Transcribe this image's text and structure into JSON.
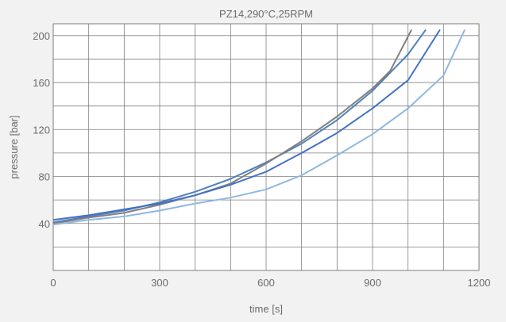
{
  "chart_data": {
    "type": "line",
    "title": "PZ14,290°C,25RPM",
    "xlabel": "time [s]",
    "ylabel": "pressure [bar]",
    "xlim": [
      0,
      1200
    ],
    "ylim": [
      0,
      210
    ],
    "grid": true,
    "x_ticks": [
      0,
      300,
      600,
      900,
      1200
    ],
    "y_ticks": [
      40,
      80,
      120,
      160,
      200
    ],
    "x_grid_step": 100,
    "y_grid_step": 20,
    "colors": {
      "background": "#f2f2f2",
      "plot_background": "#ffffff",
      "grid": "#7f7f7f",
      "text": "#6b6b6b"
    },
    "series": [
      {
        "color": "#4f81bd",
        "x": [
          0,
          100,
          200,
          300,
          400,
          500,
          600,
          700,
          800,
          900,
          1000,
          1050
        ],
        "y": [
          41,
          46,
          51,
          58,
          67,
          78,
          92,
          108,
          128,
          153,
          184,
          205
        ]
      },
      {
        "color": "#808080",
        "x": [
          0,
          100,
          200,
          300,
          400,
          500,
          600,
          700,
          800,
          900,
          950,
          1010
        ],
        "y": [
          40,
          45,
          49,
          56,
          64,
          74,
          91,
          110,
          131,
          155,
          170,
          205
        ]
      },
      {
        "color": "#4472c4",
        "x": [
          0,
          100,
          200,
          300,
          400,
          500,
          600,
          700,
          800,
          900,
          1000,
          1090
        ],
        "y": [
          43,
          47,
          52,
          57,
          64,
          73,
          84,
          100,
          117,
          138,
          162,
          205
        ]
      },
      {
        "color": "#8fb8e0",
        "x": [
          0,
          100,
          200,
          300,
          400,
          500,
          600,
          700,
          800,
          900,
          1000,
          1100,
          1160
        ],
        "y": [
          39,
          43,
          46,
          51,
          57,
          62,
          69,
          81,
          98,
          116,
          138,
          166,
          205
        ]
      }
    ]
  }
}
